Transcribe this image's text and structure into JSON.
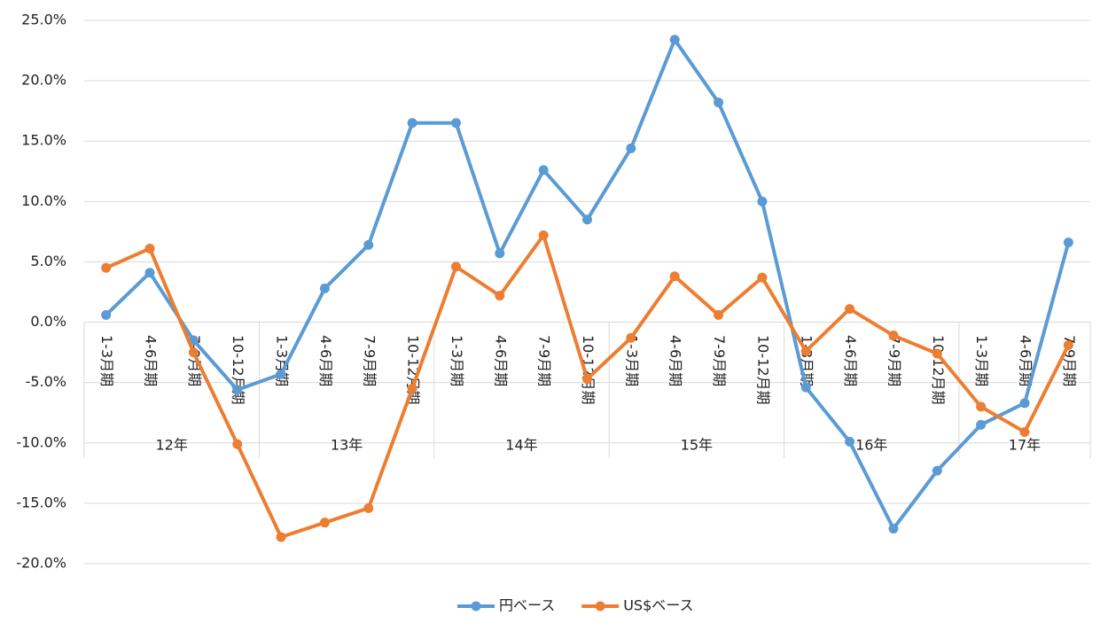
{
  "chart_data": {
    "type": "line",
    "category_groups": [
      {
        "label": "12年",
        "categories": [
          "1-3月期",
          "4-6月期",
          "7-9月期",
          "10-12月期"
        ]
      },
      {
        "label": "13年",
        "categories": [
          "1-3月期",
          "4-6月期",
          "7-9月期",
          "10-12月期"
        ]
      },
      {
        "label": "14年",
        "categories": [
          "1-3月期",
          "4-6月期",
          "7-9月期",
          "10-12月期"
        ]
      },
      {
        "label": "15年",
        "categories": [
          "1-3月期",
          "4-6月期",
          "7-9月期",
          "10-12月期"
        ]
      },
      {
        "label": "16年",
        "categories": [
          "1-3月期",
          "4-6月期",
          "7-9月期",
          "10-12月期"
        ]
      },
      {
        "label": "17年",
        "categories": [
          "1-3月期",
          "4-6月期",
          "7-9月期"
        ]
      }
    ],
    "series": [
      {
        "name": "円ベース",
        "color": "#5b9bd5",
        "values": [
          0.6,
          4.1,
          -1.5,
          -5.6,
          -4.3,
          2.8,
          6.4,
          16.5,
          16.5,
          5.7,
          12.6,
          8.5,
          14.4,
          23.4,
          18.2,
          10.0,
          -5.4,
          -9.9,
          -17.1,
          -12.3,
          -8.5,
          -6.7,
          6.6
        ]
      },
      {
        "name": "US$ベース",
        "color": "#ed7d31",
        "values": [
          4.5,
          6.1,
          -2.5,
          -10.1,
          -17.8,
          -16.6,
          -15.4,
          -5.5,
          4.6,
          2.2,
          7.2,
          -4.7,
          -1.3,
          3.8,
          0.6,
          3.7,
          -2.4,
          1.1,
          -1.1,
          -2.6,
          -7.0,
          -9.1,
          -1.9
        ]
      }
    ],
    "ylim": [
      -20,
      25
    ],
    "yticks": [
      {
        "value": -20,
        "label": "-20.0%"
      },
      {
        "value": -15,
        "label": "-15.0%"
      },
      {
        "value": -10,
        "label": "-10.0%"
      },
      {
        "value": -5,
        "label": "-5.0%"
      },
      {
        "value": 0,
        "label": "0.0%"
      },
      {
        "value": 5,
        "label": "5.0%"
      },
      {
        "value": 10,
        "label": "10.0%"
      },
      {
        "value": 15,
        "label": "15.0%"
      },
      {
        "value": 20,
        "label": "20.0%"
      },
      {
        "value": 25,
        "label": "25.0%"
      }
    ],
    "grid": true,
    "legend": "bottom"
  }
}
